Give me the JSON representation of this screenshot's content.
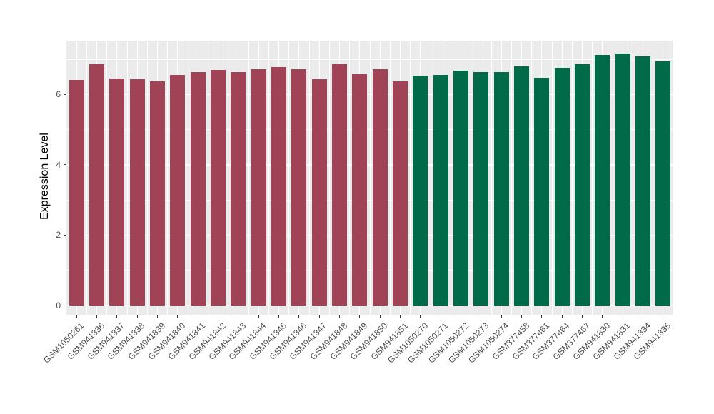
{
  "chart_data": {
    "type": "bar",
    "title": "",
    "xlabel": "",
    "ylabel": "Expression Level",
    "ylim": [
      0,
      7.5
    ],
    "yticks": [
      0,
      2,
      4,
      6
    ],
    "ytick_labels": [
      "0",
      "2",
      "4",
      "6"
    ],
    "grid": {
      "style": "ggplot gray panel with white gridlines",
      "horizontal_major": [
        0,
        2,
        4,
        6
      ],
      "horizontal_minor": [
        1,
        3,
        5,
        7
      ],
      "vertical": "major line at each category center, minor line between categories"
    },
    "legend": "none",
    "panel_background": "#EBEBEB",
    "gridline_color": "#FFFFFF",
    "categories": [
      "GSM1050261",
      "GSM941836",
      "GSM941837",
      "GSM941838",
      "GSM941839",
      "GSM941840",
      "GSM941841",
      "GSM941842",
      "GSM941843",
      "GSM941844",
      "GSM941845",
      "GSM941846",
      "GSM941847",
      "GSM941848",
      "GSM941849",
      "GSM941850",
      "GSM941851",
      "GSM1050270",
      "GSM1050271",
      "GSM1050272",
      "GSM1050273",
      "GSM1050274",
      "GSM377458",
      "GSM377461",
      "GSM377464",
      "GSM377467",
      "GSM941830",
      "GSM941831",
      "GSM941834",
      "GSM941835"
    ],
    "values": [
      6.41,
      6.85,
      6.46,
      6.43,
      6.36,
      6.56,
      6.64,
      6.69,
      6.64,
      6.72,
      6.78,
      6.71,
      6.44,
      6.85,
      6.58,
      6.71,
      6.37,
      6.54,
      6.56,
      6.68,
      6.63,
      6.64,
      6.79,
      6.48,
      6.76,
      6.86,
      7.12,
      7.17,
      7.08,
      6.93
    ],
    "color_groups": [
      {
        "color": "#A04356",
        "from_index": 0,
        "to_index": 16
      },
      {
        "color": "#016A49",
        "from_index": 17,
        "to_index": 29
      }
    ]
  }
}
